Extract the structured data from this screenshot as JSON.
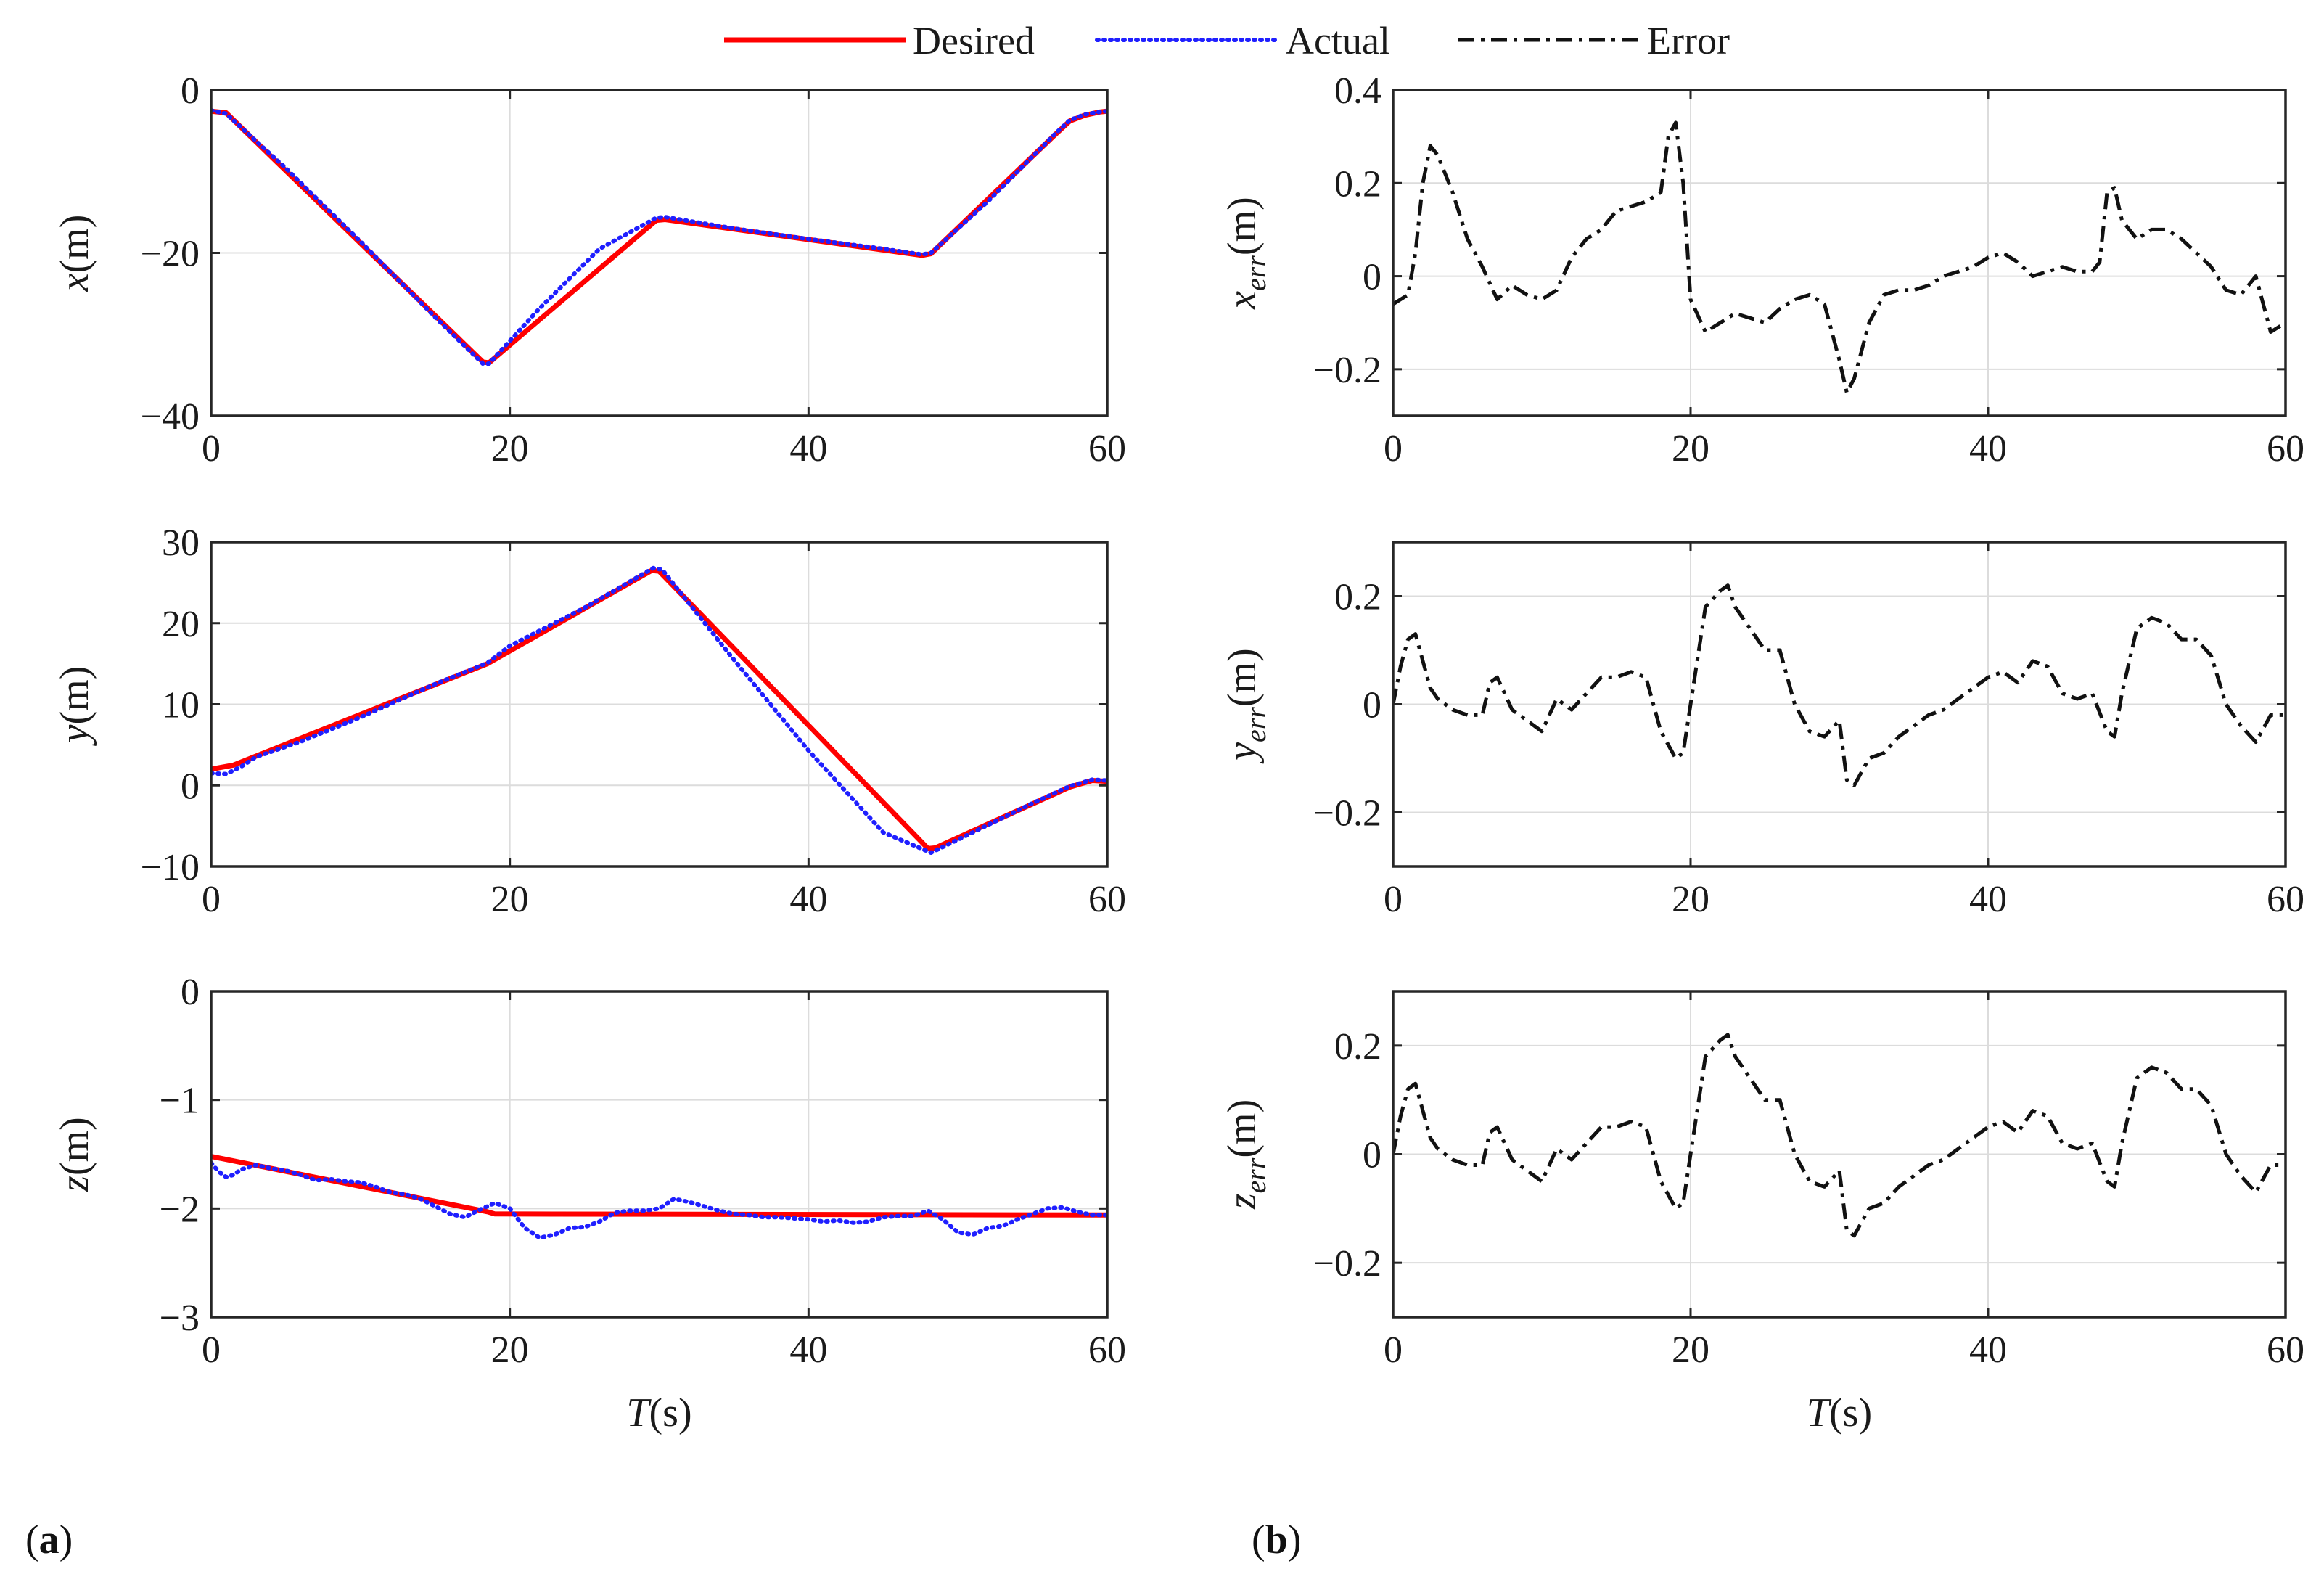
{
  "legend": {
    "desired": "Desired",
    "actual": "Actual",
    "error": "Error"
  },
  "panel_labels": {
    "a": "a",
    "b": "b"
  },
  "colors": {
    "desired": "#ff0000",
    "actual": "#1f1fff",
    "error": "#111111",
    "grid": "#dcdcdc",
    "axis": "#262626"
  },
  "chart_data": [
    {
      "id": "x",
      "type": "line",
      "panel": "a",
      "ylabel_var": "x",
      "ylabel_sub": "",
      "ylabel_unit": "(m)",
      "xlabel": "",
      "xlim": [
        0,
        60
      ],
      "ylim": [
        -40,
        0
      ],
      "grid": true,
      "xticks": [
        0,
        20,
        40,
        60
      ],
      "xtick_labels": [
        "0",
        "20",
        "40",
        "60"
      ],
      "yticks": [
        -40,
        -20,
        0
      ],
      "ytick_labels": [
        "−40",
        "−20",
        "0"
      ],
      "series": [
        {
          "name": "Desired",
          "style": "solid",
          "color": "#ff0000",
          "x": [
            0,
            1,
            18.2,
            18.6,
            29.8,
            30.4,
            47.6,
            48.2,
            56.5,
            57.5,
            58.5,
            59.5,
            60
          ],
          "y": [
            -2.6,
            -2.8,
            -33.4,
            -33.5,
            -16.0,
            -15.9,
            -20.3,
            -20.1,
            -5.5,
            -3.8,
            -3.1,
            -2.7,
            -2.6
          ]
        },
        {
          "name": "Actual",
          "style": "dotted",
          "color": "#1f1fff",
          "x": [
            0,
            1,
            5,
            10,
            15,
            18.2,
            18.6,
            22,
            26,
            29.8,
            30.4,
            35,
            40,
            45,
            47.6,
            48.2,
            52,
            56.5,
            57.5,
            58.5,
            59.5,
            60
          ],
          "y": [
            -2.5,
            -2.9,
            -9.6,
            -18.6,
            -27.9,
            -33.6,
            -33.6,
            -26.8,
            -19.5,
            -15.7,
            -15.6,
            -17.0,
            -18.3,
            -19.5,
            -20.2,
            -20.0,
            -13.7,
            -5.4,
            -3.7,
            -3.0,
            -2.7,
            -2.6
          ]
        }
      ]
    },
    {
      "id": "y",
      "type": "line",
      "panel": "a",
      "ylabel_var": "y",
      "ylabel_sub": "",
      "ylabel_unit": "(m)",
      "xlabel": "",
      "xlim": [
        0,
        60
      ],
      "ylim": [
        -10,
        30
      ],
      "grid": true,
      "xticks": [
        0,
        20,
        40,
        60
      ],
      "xtick_labels": [
        "0",
        "20",
        "40",
        "60"
      ],
      "yticks": [
        -10,
        0,
        10,
        20,
        30
      ],
      "ytick_labels": [
        "−10",
        "0",
        "10",
        "20",
        "30"
      ],
      "series": [
        {
          "name": "Desired",
          "style": "solid",
          "color": "#ff0000",
          "x": [
            0,
            1.5,
            18.5,
            29.5,
            30,
            48,
            48.5,
            57.5,
            59,
            60
          ],
          "y": [
            2.0,
            2.5,
            15.0,
            26.5,
            26.4,
            -7.8,
            -7.7,
            -0.2,
            0.6,
            0.5
          ]
        },
        {
          "name": "Actual",
          "style": "dotted",
          "color": "#1f1fff",
          "x": [
            0,
            1,
            2,
            3,
            6,
            10,
            15,
            18.5,
            20,
            25,
            29.6,
            30.2,
            35,
            40,
            45,
            48.2,
            50,
            55,
            57.5,
            59,
            60
          ],
          "y": [
            1.5,
            1.4,
            2.3,
            3.5,
            5.4,
            8.4,
            12.5,
            15.1,
            17.2,
            21.9,
            26.8,
            26.6,
            15.5,
            4.3,
            -5.8,
            -8.3,
            -6.7,
            -2.2,
            -0.1,
            0.7,
            0.6
          ]
        }
      ]
    },
    {
      "id": "z",
      "type": "line",
      "panel": "a",
      "ylabel_var": "z",
      "ylabel_sub": "",
      "ylabel_unit": "(m)",
      "xlabel": "T(s)",
      "xlim": [
        0,
        60
      ],
      "ylim": [
        -3,
        0
      ],
      "grid": true,
      "xticks": [
        0,
        20,
        40,
        60
      ],
      "xtick_labels": [
        "0",
        "20",
        "40",
        "60"
      ],
      "yticks": [
        -3,
        -2,
        -1,
        0
      ],
      "ytick_labels": [
        "−3",
        "−2",
        "−1",
        "0"
      ],
      "series": [
        {
          "name": "Desired",
          "style": "solid",
          "color": "#ff0000",
          "x": [
            0,
            18.5,
            19,
            60
          ],
          "y": [
            -1.52,
            -2.03,
            -2.05,
            -2.06
          ]
        },
        {
          "name": "Actual",
          "style": "dotted",
          "color": "#1f1fff",
          "x": [
            0,
            0.5,
            1,
            1.5,
            2,
            3,
            4,
            5,
            6,
            7,
            8,
            9,
            10,
            11,
            12,
            13,
            14,
            15,
            16,
            17,
            18,
            19,
            20,
            21,
            22,
            23,
            24,
            25,
            26,
            27,
            28,
            29,
            30,
            31,
            32,
            33,
            34,
            35,
            36,
            37,
            38,
            39,
            40,
            41,
            42,
            43,
            44,
            45,
            46,
            47,
            48,
            49,
            50,
            51,
            52,
            53,
            54,
            55,
            56,
            57,
            58,
            59,
            60
          ],
          "y": [
            -1.58,
            -1.66,
            -1.71,
            -1.69,
            -1.64,
            -1.6,
            -1.63,
            -1.65,
            -1.69,
            -1.74,
            -1.73,
            -1.75,
            -1.76,
            -1.8,
            -1.85,
            -1.87,
            -1.91,
            -1.98,
            -2.05,
            -2.08,
            -2.01,
            -1.95,
            -2.0,
            -2.18,
            -2.27,
            -2.24,
            -2.18,
            -2.17,
            -2.12,
            -2.04,
            -2.02,
            -2.02,
            -2.0,
            -1.91,
            -1.94,
            -1.98,
            -2.02,
            -2.05,
            -2.06,
            -2.08,
            -2.08,
            -2.09,
            -2.1,
            -2.12,
            -2.11,
            -2.13,
            -2.12,
            -2.08,
            -2.07,
            -2.07,
            -2.02,
            -2.1,
            -2.22,
            -2.24,
            -2.18,
            -2.16,
            -2.1,
            -2.05,
            -2.0,
            -1.99,
            -2.03,
            -2.06,
            -2.06
          ]
        }
      ]
    },
    {
      "id": "xerr",
      "type": "line",
      "panel": "b",
      "ylabel_var": "x",
      "ylabel_sub": "err",
      "ylabel_unit": "(m)",
      "xlabel": "",
      "xlim": [
        0,
        60
      ],
      "ylim": [
        -0.3,
        0.4
      ],
      "grid": true,
      "xticks": [
        0,
        20,
        40,
        60
      ],
      "xtick_labels": [
        "0",
        "20",
        "40",
        "60"
      ],
      "yticks": [
        -0.2,
        0,
        0.2,
        0.4
      ],
      "ytick_labels": [
        "−0.2",
        "0",
        "0.2",
        "0.4"
      ],
      "series": [
        {
          "name": "Error",
          "style": "dashdot",
          "color": "#111111",
          "x": [
            0,
            0.5,
            1,
            1.5,
            2,
            2.5,
            3,
            3.5,
            4,
            5,
            6,
            7,
            8,
            9,
            10,
            11,
            12,
            13,
            14,
            15,
            16,
            17,
            18,
            18.5,
            19,
            19.5,
            20,
            21,
            22,
            23,
            24,
            25,
            26,
            27,
            28,
            29,
            30,
            30.5,
            31,
            32,
            33,
            34,
            35,
            36,
            37,
            38,
            39,
            40,
            41,
            42,
            43,
            44,
            45,
            46,
            47,
            47.5,
            48,
            48.5,
            49,
            50,
            51,
            52,
            53,
            54,
            55,
            56,
            57,
            58,
            59,
            60
          ],
          "y": [
            -0.06,
            -0.05,
            -0.04,
            0.05,
            0.2,
            0.28,
            0.26,
            0.22,
            0.18,
            0.08,
            0.02,
            -0.05,
            -0.02,
            -0.04,
            -0.05,
            -0.03,
            0.04,
            0.08,
            0.1,
            0.14,
            0.15,
            0.16,
            0.18,
            0.3,
            0.33,
            0.2,
            -0.05,
            -0.12,
            -0.1,
            -0.08,
            -0.09,
            -0.1,
            -0.07,
            -0.05,
            -0.04,
            -0.06,
            -0.18,
            -0.25,
            -0.22,
            -0.1,
            -0.04,
            -0.03,
            -0.03,
            -0.02,
            0.0,
            0.01,
            0.02,
            0.04,
            0.05,
            0.03,
            0.0,
            0.01,
            0.02,
            0.01,
            0.01,
            0.03,
            0.18,
            0.19,
            0.12,
            0.08,
            0.1,
            0.1,
            0.08,
            0.05,
            0.02,
            -0.03,
            -0.04,
            0.0,
            -0.12,
            -0.1
          ]
        }
      ]
    },
    {
      "id": "yerr",
      "type": "line",
      "panel": "b",
      "ylabel_var": "y",
      "ylabel_sub": "err",
      "ylabel_unit": "(m)",
      "xlabel": "",
      "xlim": [
        0,
        60
      ],
      "ylim": [
        -0.3,
        0.3
      ],
      "grid": true,
      "xticks": [
        0,
        20,
        40,
        60
      ],
      "xtick_labels": [
        "0",
        "20",
        "40",
        "60"
      ],
      "yticks": [
        -0.2,
        0,
        0.2
      ],
      "ytick_labels": [
        "−0.2",
        "0",
        "0.2"
      ],
      "series": [
        {
          "name": "Error",
          "style": "dashdot",
          "color": "#111111",
          "x": [
            0,
            0.5,
            1,
            1.5,
            2,
            2.5,
            3,
            4,
            5,
            6,
            6.5,
            7,
            8,
            9,
            10,
            11,
            12,
            13,
            14,
            15,
            16,
            17,
            18,
            19,
            19.5,
            20,
            21,
            22,
            22.5,
            23,
            24,
            25,
            26,
            27,
            28,
            29,
            30,
            30.5,
            31,
            32,
            33,
            34,
            35,
            36,
            37,
            38,
            39,
            40,
            41,
            42,
            43,
            44,
            45,
            46,
            47,
            48,
            48.5,
            49,
            50,
            51,
            52,
            53,
            54,
            55,
            56,
            57,
            58,
            59,
            60
          ],
          "y": [
            0.0,
            0.07,
            0.12,
            0.13,
            0.08,
            0.03,
            0.01,
            -0.01,
            -0.02,
            -0.02,
            0.04,
            0.05,
            -0.01,
            -0.03,
            -0.05,
            0.01,
            -0.01,
            0.02,
            0.05,
            0.05,
            0.06,
            0.05,
            -0.05,
            -0.1,
            -0.09,
            0.0,
            0.18,
            0.21,
            0.22,
            0.18,
            0.14,
            0.1,
            0.1,
            0.0,
            -0.05,
            -0.06,
            -0.03,
            -0.14,
            -0.15,
            -0.1,
            -0.09,
            -0.06,
            -0.04,
            -0.02,
            -0.01,
            0.01,
            0.03,
            0.05,
            0.06,
            0.04,
            0.08,
            0.07,
            0.02,
            0.01,
            0.02,
            -0.05,
            -0.06,
            0.02,
            0.14,
            0.16,
            0.15,
            0.12,
            0.12,
            0.09,
            0.0,
            -0.04,
            -0.07,
            -0.02,
            -0.02
          ]
        }
      ]
    },
    {
      "id": "zerr",
      "type": "line",
      "panel": "b",
      "ylabel_var": "z",
      "ylabel_sub": "err",
      "ylabel_unit": "(m)",
      "xlabel": "T(s)",
      "xlim": [
        0,
        60
      ],
      "ylim": [
        -0.3,
        0.3
      ],
      "grid": true,
      "xticks": [
        0,
        20,
        40,
        60
      ],
      "xtick_labels": [
        "0",
        "20",
        "40",
        "60"
      ],
      "yticks": [
        -0.2,
        0,
        0.2
      ],
      "ytick_labels": [
        "−0.2",
        "0",
        "0.2"
      ],
      "series": [
        {
          "name": "Error",
          "style": "dashdot",
          "color": "#111111",
          "x": [
            0,
            0.5,
            1,
            1.5,
            2,
            2.5,
            3,
            4,
            5,
            6,
            6.5,
            7,
            8,
            9,
            10,
            11,
            12,
            13,
            14,
            15,
            16,
            17,
            18,
            19,
            19.5,
            20,
            21,
            22,
            22.5,
            23,
            24,
            25,
            26,
            27,
            28,
            29,
            30,
            30.5,
            31,
            32,
            33,
            34,
            35,
            36,
            37,
            38,
            39,
            40,
            41,
            42,
            43,
            44,
            45,
            46,
            47,
            48,
            48.5,
            49,
            50,
            51,
            52,
            53,
            54,
            55,
            56,
            57,
            58,
            59,
            60
          ],
          "y": [
            0.0,
            0.07,
            0.12,
            0.13,
            0.08,
            0.03,
            0.01,
            -0.01,
            -0.02,
            -0.02,
            0.04,
            0.05,
            -0.01,
            -0.03,
            -0.05,
            0.01,
            -0.01,
            0.02,
            0.05,
            0.05,
            0.06,
            0.05,
            -0.05,
            -0.1,
            -0.09,
            0.0,
            0.18,
            0.21,
            0.22,
            0.18,
            0.14,
            0.1,
            0.1,
            0.0,
            -0.05,
            -0.06,
            -0.03,
            -0.14,
            -0.15,
            -0.1,
            -0.09,
            -0.06,
            -0.04,
            -0.02,
            -0.01,
            0.01,
            0.03,
            0.05,
            0.06,
            0.04,
            0.08,
            0.07,
            0.02,
            0.01,
            0.02,
            -0.05,
            -0.06,
            0.02,
            0.14,
            0.16,
            0.15,
            0.12,
            0.12,
            0.09,
            0.0,
            -0.04,
            -0.07,
            -0.02,
            -0.02
          ]
        }
      ]
    }
  ]
}
